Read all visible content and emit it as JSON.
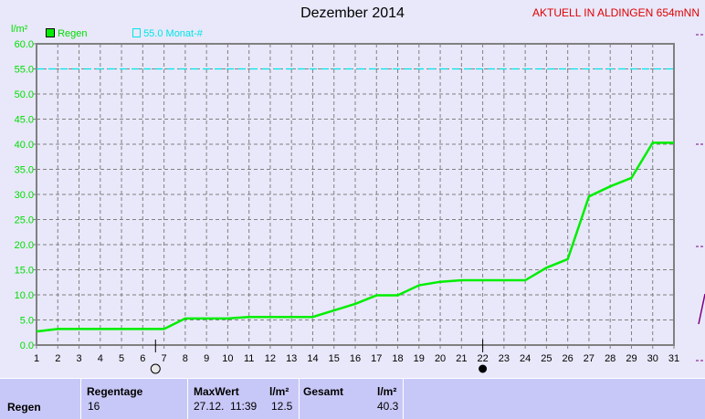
{
  "header": {
    "title": "Dezember 2014",
    "station": "AKTUELL IN ALDINGEN 654mNN"
  },
  "legend": {
    "series": "Regen",
    "reference": "55.0 Monat-#"
  },
  "colors": {
    "series": "#00ee00",
    "reference": "#00e5e5",
    "grid": "#808080",
    "station": "#e00000"
  },
  "chart_data": {
    "type": "line",
    "ylabel": "l/m²",
    "ylim": [
      0,
      60
    ],
    "yticks": [
      "0.0",
      "5.0",
      "10.0",
      "15.0",
      "20.0",
      "25.0",
      "30.0",
      "35.0",
      "40.0",
      "45.0",
      "50.0",
      "55.0",
      "60.0"
    ],
    "x": [
      1,
      2,
      3,
      4,
      5,
      6,
      7,
      8,
      9,
      10,
      11,
      12,
      13,
      14,
      15,
      16,
      17,
      18,
      19,
      20,
      21,
      22,
      23,
      24,
      25,
      26,
      27,
      28,
      29,
      30,
      31
    ],
    "grid": true,
    "series": [
      {
        "name": "Regen",
        "values": [
          2.7,
          3.2,
          3.2,
          3.2,
          3.2,
          3.2,
          3.2,
          5.3,
          5.3,
          5.3,
          5.6,
          5.6,
          5.6,
          5.6,
          6.9,
          8.2,
          9.9,
          9.9,
          11.9,
          12.6,
          12.9,
          12.9,
          12.9,
          12.9,
          15.4,
          17.1,
          29.6,
          31.6,
          33.3,
          40.3,
          40.3
        ]
      }
    ],
    "reference_line": 55.0,
    "moon_phases": [
      {
        "day": 6.6,
        "phase": "full-moon"
      },
      {
        "day": 22,
        "phase": "new-moon"
      }
    ]
  },
  "stats": {
    "row_label": "Regen",
    "regentage_label": "Regentage",
    "regentage": "16",
    "maxwert_label": "MaxWert",
    "unit": "l/m²",
    "maxwert_time": "27.12.  11:39",
    "maxwert": "12.5",
    "gesamt_label": "Gesamt",
    "gesamt": "40.3"
  }
}
